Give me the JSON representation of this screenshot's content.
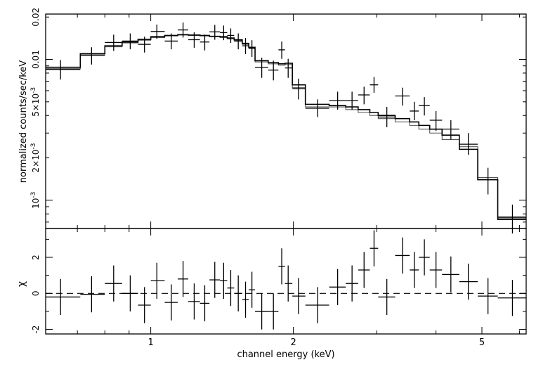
{
  "chart_data": [
    {
      "type": "scatter",
      "panel": "spectrum",
      "ylabel": "normalized counts/sec/keV",
      "xscale": "log",
      "yscale": "log",
      "xlim": [
        0.6,
        6.2
      ],
      "ylim": [
        0.00063,
        0.021
      ],
      "yticks": [
        {
          "value": 0.001,
          "label": "10",
          "sup": "-3"
        },
        {
          "value": 0.002,
          "label": "2×10",
          "sup": "-3"
        },
        {
          "value": 0.005,
          "label": "5×10",
          "sup": "-3"
        },
        {
          "value": 0.01,
          "label": "0.01",
          "sup": ""
        },
        {
          "value": 0.02,
          "label": "0.02",
          "sup": ""
        }
      ],
      "points": [
        {
          "x": 0.645,
          "xlo": 0.6,
          "xhi": 0.71,
          "y": 0.0085,
          "ylo": 0.0072,
          "yhi": 0.0099
        },
        {
          "x": 0.75,
          "xlo": 0.71,
          "xhi": 0.8,
          "y": 0.0107,
          "ylo": 0.0092,
          "yhi": 0.0122
        },
        {
          "x": 0.835,
          "xlo": 0.8,
          "xhi": 0.87,
          "y": 0.0132,
          "ylo": 0.0115,
          "yhi": 0.015
        },
        {
          "x": 0.905,
          "xlo": 0.87,
          "xhi": 0.94,
          "y": 0.0135,
          "ylo": 0.0118,
          "yhi": 0.0153
        },
        {
          "x": 0.97,
          "xlo": 0.94,
          "xhi": 1.0,
          "y": 0.0128,
          "ylo": 0.0112,
          "yhi": 0.0145
        },
        {
          "x": 1.03,
          "xlo": 1.0,
          "xhi": 1.07,
          "y": 0.0158,
          "ylo": 0.014,
          "yhi": 0.0177
        },
        {
          "x": 1.105,
          "xlo": 1.07,
          "xhi": 1.14,
          "y": 0.0135,
          "ylo": 0.0118,
          "yhi": 0.0153
        },
        {
          "x": 1.17,
          "xlo": 1.14,
          "xhi": 1.2,
          "y": 0.0162,
          "ylo": 0.0143,
          "yhi": 0.0183
        },
        {
          "x": 1.235,
          "xlo": 1.2,
          "xhi": 1.27,
          "y": 0.0138,
          "ylo": 0.0121,
          "yhi": 0.0156
        },
        {
          "x": 1.3,
          "xlo": 1.27,
          "xhi": 1.33,
          "y": 0.0133,
          "ylo": 0.0116,
          "yhi": 0.015
        },
        {
          "x": 1.365,
          "xlo": 1.33,
          "xhi": 1.4,
          "y": 0.0157,
          "ylo": 0.0138,
          "yhi": 0.0176
        },
        {
          "x": 1.425,
          "xlo": 1.4,
          "xhi": 1.45,
          "y": 0.0155,
          "ylo": 0.0137,
          "yhi": 0.0174
        },
        {
          "x": 1.475,
          "xlo": 1.45,
          "xhi": 1.5,
          "y": 0.0148,
          "ylo": 0.0131,
          "yhi": 0.0166
        },
        {
          "x": 1.53,
          "xlo": 1.5,
          "xhi": 1.56,
          "y": 0.0135,
          "ylo": 0.0118,
          "yhi": 0.0153
        },
        {
          "x": 1.585,
          "xlo": 1.56,
          "xhi": 1.61,
          "y": 0.0125,
          "ylo": 0.0109,
          "yhi": 0.0142
        },
        {
          "x": 1.635,
          "xlo": 1.61,
          "xhi": 1.66,
          "y": 0.012,
          "ylo": 0.0104,
          "yhi": 0.0137
        },
        {
          "x": 1.715,
          "xlo": 1.66,
          "xhi": 1.77,
          "y": 0.0088,
          "ylo": 0.0074,
          "yhi": 0.0103
        },
        {
          "x": 1.815,
          "xlo": 1.77,
          "xhi": 1.86,
          "y": 0.0084,
          "ylo": 0.0071,
          "yhi": 0.0098
        },
        {
          "x": 1.89,
          "xlo": 1.86,
          "xhi": 1.92,
          "y": 0.0117,
          "ylo": 0.0101,
          "yhi": 0.0134
        },
        {
          "x": 1.95,
          "xlo": 1.92,
          "xhi": 1.99,
          "y": 0.0087,
          "ylo": 0.0074,
          "yhi": 0.0101
        },
        {
          "x": 2.05,
          "xlo": 1.99,
          "xhi": 2.12,
          "y": 0.0062,
          "ylo": 0.0052,
          "yhi": 0.0073
        },
        {
          "x": 2.25,
          "xlo": 2.12,
          "xhi": 2.38,
          "y": 0.0045,
          "ylo": 0.0039,
          "yhi": 0.0052
        },
        {
          "x": 2.48,
          "xlo": 2.38,
          "xhi": 2.58,
          "y": 0.0051,
          "ylo": 0.0044,
          "yhi": 0.0059
        },
        {
          "x": 2.66,
          "xlo": 2.58,
          "xhi": 2.74,
          "y": 0.0051,
          "ylo": 0.0044,
          "yhi": 0.0059
        },
        {
          "x": 2.82,
          "xlo": 2.74,
          "xhi": 2.9,
          "y": 0.0056,
          "ylo": 0.0048,
          "yhi": 0.0064
        },
        {
          "x": 2.96,
          "xlo": 2.9,
          "xhi": 3.02,
          "y": 0.0066,
          "ylo": 0.0058,
          "yhi": 0.0075
        },
        {
          "x": 3.15,
          "xlo": 3.02,
          "xhi": 3.28,
          "y": 0.0039,
          "ylo": 0.0033,
          "yhi": 0.0046
        },
        {
          "x": 3.4,
          "xlo": 3.28,
          "xhi": 3.52,
          "y": 0.0055,
          "ylo": 0.0047,
          "yhi": 0.0063
        },
        {
          "x": 3.6,
          "xlo": 3.52,
          "xhi": 3.68,
          "y": 0.0043,
          "ylo": 0.0037,
          "yhi": 0.005
        },
        {
          "x": 3.78,
          "xlo": 3.68,
          "xhi": 3.88,
          "y": 0.0047,
          "ylo": 0.004,
          "yhi": 0.0054
        },
        {
          "x": 4.0,
          "xlo": 3.88,
          "xhi": 4.12,
          "y": 0.0037,
          "ylo": 0.0031,
          "yhi": 0.0043
        },
        {
          "x": 4.3,
          "xlo": 4.12,
          "xhi": 4.48,
          "y": 0.0032,
          "ylo": 0.0027,
          "yhi": 0.0037
        },
        {
          "x": 4.68,
          "xlo": 4.48,
          "xhi": 4.9,
          "y": 0.0025,
          "ylo": 0.0021,
          "yhi": 0.003
        },
        {
          "x": 5.15,
          "xlo": 4.9,
          "xhi": 5.4,
          "y": 0.0014,
          "ylo": 0.0011,
          "yhi": 0.0017
        },
        {
          "x": 5.8,
          "xlo": 5.4,
          "xhi": 6.2,
          "y": 0.00075,
          "ylo": 0.00058,
          "yhi": 0.00093
        }
      ],
      "model_steps": [
        {
          "x0": 0.6,
          "x1": 0.71,
          "m1": 0.0088,
          "m2": 0.0086
        },
        {
          "x0": 0.71,
          "x1": 0.8,
          "m1": 0.011,
          "m2": 0.0108
        },
        {
          "x0": 0.8,
          "x1": 0.87,
          "m1": 0.0125,
          "m2": 0.0123
        },
        {
          "x0": 0.87,
          "x1": 0.94,
          "m1": 0.0133,
          "m2": 0.0131
        },
        {
          "x0": 0.94,
          "x1": 1.0,
          "m1": 0.0139,
          "m2": 0.0137
        },
        {
          "x0": 1.0,
          "x1": 1.07,
          "m1": 0.0145,
          "m2": 0.0143
        },
        {
          "x0": 1.07,
          "x1": 1.14,
          "m1": 0.0148,
          "m2": 0.0147
        },
        {
          "x0": 1.14,
          "x1": 1.2,
          "m1": 0.015,
          "m2": 0.0149
        },
        {
          "x0": 1.2,
          "x1": 1.27,
          "m1": 0.0149,
          "m2": 0.0148
        },
        {
          "x0": 1.27,
          "x1": 1.33,
          "m1": 0.0148,
          "m2": 0.0147
        },
        {
          "x0": 1.33,
          "x1": 1.4,
          "m1": 0.0146,
          "m2": 0.0145
        },
        {
          "x0": 1.4,
          "x1": 1.45,
          "m1": 0.0145,
          "m2": 0.0143
        },
        {
          "x0": 1.45,
          "x1": 1.5,
          "m1": 0.0142,
          "m2": 0.014
        },
        {
          "x0": 1.5,
          "x1": 1.56,
          "m1": 0.0138,
          "m2": 0.0136
        },
        {
          "x0": 1.56,
          "x1": 1.61,
          "m1": 0.013,
          "m2": 0.0128
        },
        {
          "x0": 1.61,
          "x1": 1.66,
          "m1": 0.0122,
          "m2": 0.012
        },
        {
          "x0": 1.66,
          "x1": 1.77,
          "m1": 0.0098,
          "m2": 0.0096
        },
        {
          "x0": 1.77,
          "x1": 1.86,
          "m1": 0.0095,
          "m2": 0.0093
        },
        {
          "x0": 1.86,
          "x1": 1.92,
          "m1": 0.0093,
          "m2": 0.0091
        },
        {
          "x0": 1.92,
          "x1": 1.99,
          "m1": 0.0094,
          "m2": 0.0092
        },
        {
          "x0": 1.99,
          "x1": 2.12,
          "m1": 0.0066,
          "m2": 0.0063
        },
        {
          "x0": 2.12,
          "x1": 2.38,
          "m1": 0.0048,
          "m2": 0.0046
        },
        {
          "x0": 2.38,
          "x1": 2.58,
          "m1": 0.0047,
          "m2": 0.0046
        },
        {
          "x0": 2.58,
          "x1": 2.74,
          "m1": 0.0046,
          "m2": 0.0044
        },
        {
          "x0": 2.74,
          "x1": 2.9,
          "m1": 0.0044,
          "m2": 0.0042
        },
        {
          "x0": 2.9,
          "x1": 3.02,
          "m1": 0.0042,
          "m2": 0.004
        },
        {
          "x0": 3.02,
          "x1": 3.28,
          "m1": 0.004,
          "m2": 0.0038
        },
        {
          "x0": 3.28,
          "x1": 3.52,
          "m1": 0.0038,
          "m2": 0.0036
        },
        {
          "x0": 3.52,
          "x1": 3.68,
          "m1": 0.0036,
          "m2": 0.0034
        },
        {
          "x0": 3.68,
          "x1": 3.88,
          "m1": 0.0034,
          "m2": 0.0032
        },
        {
          "x0": 3.88,
          "x1": 4.12,
          "m1": 0.0032,
          "m2": 0.003
        },
        {
          "x0": 4.12,
          "x1": 4.48,
          "m1": 0.0029,
          "m2": 0.0027
        },
        {
          "x0": 4.48,
          "x1": 4.9,
          "m1": 0.0023,
          "m2": 0.0024
        },
        {
          "x0": 4.9,
          "x1": 5.4,
          "m1": 0.0014,
          "m2": 0.00145
        },
        {
          "x0": 5.4,
          "x1": 6.2,
          "m1": 0.00073,
          "m2": 0.00077
        }
      ]
    },
    {
      "type": "scatter",
      "panel": "residuals",
      "ylabel": "χ",
      "xlabel": "channel energy (keV)",
      "xscale": "log",
      "xlim": [
        0.6,
        6.2
      ],
      "ylim": [
        -2.25,
        3.6
      ],
      "yticks": [
        -2,
        0,
        2
      ],
      "xticks": [
        1,
        2,
        5
      ],
      "zero_line": 0,
      "points": [
        {
          "x": 0.645,
          "xlo": 0.6,
          "xhi": 0.71,
          "y": -0.2,
          "err": 1.0
        },
        {
          "x": 0.75,
          "xlo": 0.71,
          "xhi": 0.8,
          "y": -0.05,
          "err": 1.0
        },
        {
          "x": 0.835,
          "xlo": 0.8,
          "xhi": 0.87,
          "y": 0.55,
          "err": 1.0
        },
        {
          "x": 0.905,
          "xlo": 0.87,
          "xhi": 0.94,
          "y": 0.0,
          "err": 1.0
        },
        {
          "x": 0.97,
          "xlo": 0.94,
          "xhi": 1.0,
          "y": -0.65,
          "err": 1.0
        },
        {
          "x": 1.03,
          "xlo": 1.0,
          "xhi": 1.07,
          "y": 0.7,
          "err": 1.0
        },
        {
          "x": 1.105,
          "xlo": 1.07,
          "xhi": 1.14,
          "y": -0.5,
          "err": 1.0
        },
        {
          "x": 1.17,
          "xlo": 1.14,
          "xhi": 1.2,
          "y": 0.8,
          "err": 1.0
        },
        {
          "x": 1.235,
          "xlo": 1.2,
          "xhi": 1.27,
          "y": -0.45,
          "err": 1.0
        },
        {
          "x": 1.3,
          "xlo": 1.27,
          "xhi": 1.33,
          "y": -0.55,
          "err": 1.0
        },
        {
          "x": 1.365,
          "xlo": 1.33,
          "xhi": 1.4,
          "y": 0.75,
          "err": 1.0
        },
        {
          "x": 1.425,
          "xlo": 1.4,
          "xhi": 1.45,
          "y": 0.7,
          "err": 1.0
        },
        {
          "x": 1.475,
          "xlo": 1.45,
          "xhi": 1.5,
          "y": 0.3,
          "err": 1.0
        },
        {
          "x": 1.53,
          "xlo": 1.5,
          "xhi": 1.56,
          "y": 0.0,
          "err": 1.0
        },
        {
          "x": 1.585,
          "xlo": 1.56,
          "xhi": 1.61,
          "y": -0.35,
          "err": 1.0
        },
        {
          "x": 1.635,
          "xlo": 1.61,
          "xhi": 1.66,
          "y": 0.2,
          "err": 1.0
        },
        {
          "x": 1.715,
          "xlo": 1.66,
          "xhi": 1.77,
          "y": -1.0,
          "err": 1.0
        },
        {
          "x": 1.815,
          "xlo": 1.77,
          "xhi": 1.86,
          "y": -1.0,
          "err": 1.0
        },
        {
          "x": 1.89,
          "xlo": 1.86,
          "xhi": 1.92,
          "y": 1.5,
          "err": 1.0
        },
        {
          "x": 1.95,
          "xlo": 1.92,
          "xhi": 1.99,
          "y": 0.55,
          "err": 1.0
        },
        {
          "x": 2.05,
          "xlo": 1.99,
          "xhi": 2.12,
          "y": -0.15,
          "err": 1.0
        },
        {
          "x": 2.25,
          "xlo": 2.12,
          "xhi": 2.38,
          "y": -0.65,
          "err": 1.0
        },
        {
          "x": 2.48,
          "xlo": 2.38,
          "xhi": 2.58,
          "y": 0.35,
          "err": 1.0
        },
        {
          "x": 2.66,
          "xlo": 2.58,
          "xhi": 2.74,
          "y": 0.55,
          "err": 1.0
        },
        {
          "x": 2.82,
          "xlo": 2.74,
          "xhi": 2.9,
          "y": 1.3,
          "err": 1.0
        },
        {
          "x": 2.96,
          "xlo": 2.9,
          "xhi": 3.02,
          "y": 2.5,
          "err": 1.0
        },
        {
          "x": 3.15,
          "xlo": 3.02,
          "xhi": 3.28,
          "y": -0.2,
          "err": 1.0
        },
        {
          "x": 3.4,
          "xlo": 3.28,
          "xhi": 3.52,
          "y": 2.1,
          "err": 1.0
        },
        {
          "x": 3.6,
          "xlo": 3.52,
          "xhi": 3.68,
          "y": 1.3,
          "err": 1.0
        },
        {
          "x": 3.78,
          "xlo": 3.68,
          "xhi": 3.88,
          "y": 2.0,
          "err": 1.0
        },
        {
          "x": 4.0,
          "xlo": 3.88,
          "xhi": 4.12,
          "y": 1.3,
          "err": 1.0
        },
        {
          "x": 4.3,
          "xlo": 4.12,
          "xhi": 4.48,
          "y": 1.05,
          "err": 1.0
        },
        {
          "x": 4.68,
          "xlo": 4.48,
          "xhi": 4.9,
          "y": 0.65,
          "err": 1.0
        },
        {
          "x": 5.15,
          "xlo": 4.9,
          "xhi": 5.4,
          "y": -0.15,
          "err": 1.0
        },
        {
          "x": 5.8,
          "xlo": 5.4,
          "xhi": 6.2,
          "y": -0.25,
          "err": 1.0
        }
      ]
    }
  ]
}
